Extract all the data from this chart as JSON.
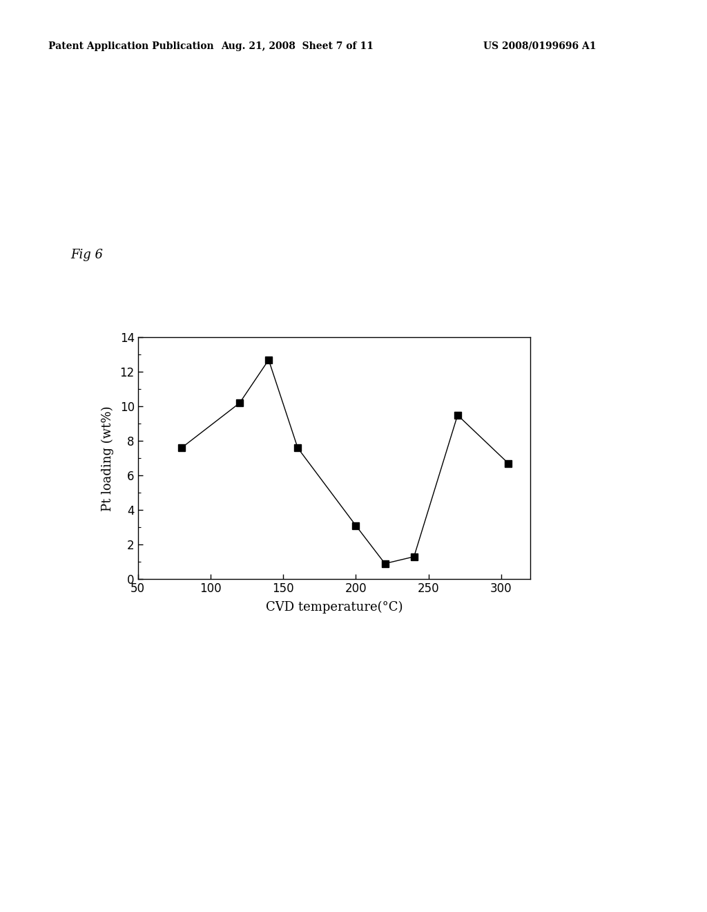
{
  "x": [
    80,
    120,
    140,
    160,
    200,
    220,
    240,
    270,
    305
  ],
  "y": [
    7.6,
    10.2,
    12.7,
    7.6,
    3.1,
    0.9,
    1.3,
    9.5,
    6.7
  ],
  "xlabel": "CVD temperature(°C)",
  "ylabel": "Pt loading (wt%)",
  "fig_label": "Fig 6",
  "xlim": [
    50,
    320
  ],
  "ylim": [
    0,
    14
  ],
  "xticks": [
    50,
    100,
    150,
    200,
    250,
    300
  ],
  "yticks": [
    0,
    2,
    4,
    6,
    8,
    10,
    12,
    14
  ],
  "header_left": "Patent Application Publication",
  "header_mid": "Aug. 21, 2008  Sheet 7 of 11",
  "header_right": "US 2008/0199696 A1",
  "marker_color": "black",
  "line_color": "black",
  "background_color": "white",
  "marker_size": 7,
  "line_width": 1.0,
  "axis_fontsize": 13,
  "tick_fontsize": 12,
  "header_fontsize": 10,
  "fig_label_fontsize": 13
}
